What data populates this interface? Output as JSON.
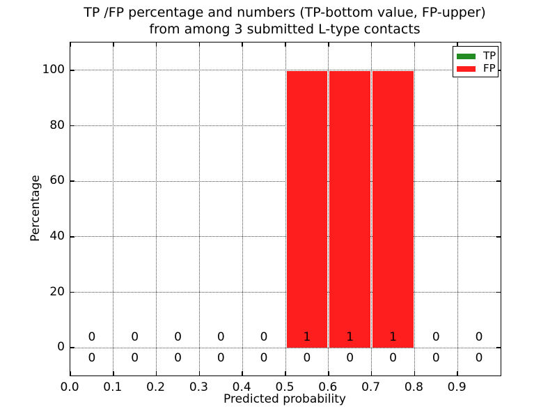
{
  "chart_data": {
    "type": "bar",
    "title_line1": "TP /FP percentage and numbers (TP-bottom value, FP-upper)",
    "title_line2": "from among 3 submitted L-type contacts",
    "xlabel": "Predicted probability",
    "ylabel": "Percentage",
    "xlim": [
      0.0,
      1.0
    ],
    "ylim": [
      -10,
      110
    ],
    "x_ticks": [
      "0.0",
      "0.1",
      "0.2",
      "0.3",
      "0.4",
      "0.5",
      "0.6",
      "0.7",
      "0.8",
      "0.9"
    ],
    "y_ticks": [
      "0",
      "20",
      "40",
      "60",
      "80",
      "100"
    ],
    "grid": true,
    "grid_style": "dotted",
    "bin_centers": [
      0.05,
      0.15,
      0.25,
      0.35,
      0.45,
      0.55,
      0.65,
      0.75,
      0.85,
      0.95
    ],
    "bin_width": 0.1,
    "series": [
      {
        "name": "TP",
        "color": "#228b22",
        "percent": [
          0,
          0,
          0,
          0,
          0,
          0,
          0,
          0,
          0,
          0
        ],
        "counts": [
          0,
          0,
          0,
          0,
          0,
          0,
          0,
          0,
          0,
          0
        ],
        "count_row": "bottom"
      },
      {
        "name": "FP",
        "color": "#ff1e1e",
        "percent": [
          0,
          0,
          0,
          0,
          0,
          100,
          100,
          100,
          0,
          0
        ],
        "counts": [
          0,
          0,
          0,
          0,
          0,
          1,
          1,
          1,
          0,
          0
        ],
        "count_row": "top"
      }
    ],
    "legend": {
      "position": "upper right",
      "entries": [
        {
          "label": "TP",
          "color": "#228b22"
        },
        {
          "label": "FP",
          "color": "#ff1e1e"
        }
      ]
    }
  }
}
